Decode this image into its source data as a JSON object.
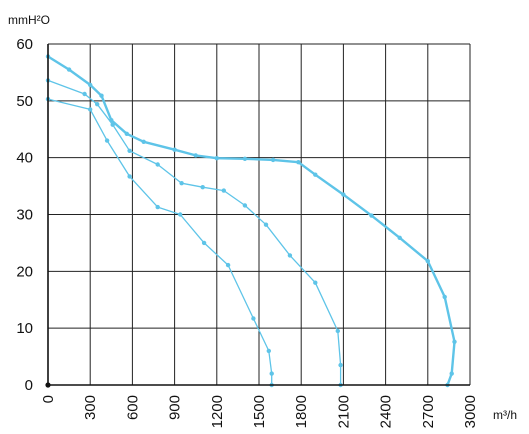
{
  "chart_data": {
    "type": "line",
    "ylabel": "mmH²O",
    "xlabel": "m³/h",
    "xlim": [
      0,
      3000
    ],
    "ylim": [
      0,
      60
    ],
    "xticks": [
      "0",
      "300",
      "600",
      "900",
      "1200",
      "1500",
      "1800",
      "2100",
      "2400",
      "2700",
      "3000"
    ],
    "yticks": [
      "0",
      "10",
      "20",
      "30",
      "40",
      "50",
      "60"
    ],
    "grid": true,
    "colors": {
      "series": "#5ec4e8",
      "axis": "#111111",
      "grid": "#222222"
    },
    "series": [
      {
        "width": 2.4,
        "points": [
          [
            0,
            57.8
          ],
          [
            150,
            55.5
          ],
          [
            300,
            52.8
          ],
          [
            380,
            50.9
          ],
          [
            450,
            46.6
          ],
          [
            560,
            44.2
          ],
          [
            680,
            42.8
          ],
          [
            900,
            41.4
          ],
          [
            1050,
            40.4
          ],
          [
            1200,
            39.9
          ],
          [
            1400,
            39.8
          ],
          [
            1600,
            39.6
          ],
          [
            1780,
            39.2
          ],
          [
            1900,
            37.0
          ],
          [
            2100,
            33.5
          ],
          [
            2300,
            29.8
          ],
          [
            2500,
            25.9
          ],
          [
            2700,
            21.8
          ],
          [
            2820,
            15.5
          ],
          [
            2890,
            7.6
          ],
          [
            2870,
            2.0
          ],
          [
            2840,
            0
          ]
        ]
      },
      {
        "width": 1.3,
        "points": [
          [
            0,
            53.6
          ],
          [
            260,
            51.2
          ],
          [
            350,
            49.4
          ],
          [
            460,
            45.8
          ],
          [
            580,
            41.2
          ],
          [
            780,
            38.8
          ],
          [
            950,
            35.5
          ],
          [
            1100,
            34.8
          ],
          [
            1250,
            34.2
          ],
          [
            1400,
            31.6
          ],
          [
            1550,
            28.2
          ],
          [
            1720,
            22.8
          ],
          [
            1900,
            18.0
          ],
          [
            2060,
            9.5
          ],
          [
            2080,
            3.5
          ],
          [
            2080,
            0
          ]
        ]
      },
      {
        "width": 1.3,
        "points": [
          [
            0,
            50.3
          ],
          [
            300,
            48.5
          ],
          [
            420,
            43.0
          ],
          [
            580,
            36.7
          ],
          [
            780,
            31.3
          ],
          [
            940,
            30.0
          ],
          [
            1110,
            25.0
          ],
          [
            1280,
            21.1
          ],
          [
            1460,
            11.7
          ],
          [
            1570,
            6.0
          ],
          [
            1590,
            2.0
          ],
          [
            1590,
            0
          ]
        ]
      }
    ]
  }
}
